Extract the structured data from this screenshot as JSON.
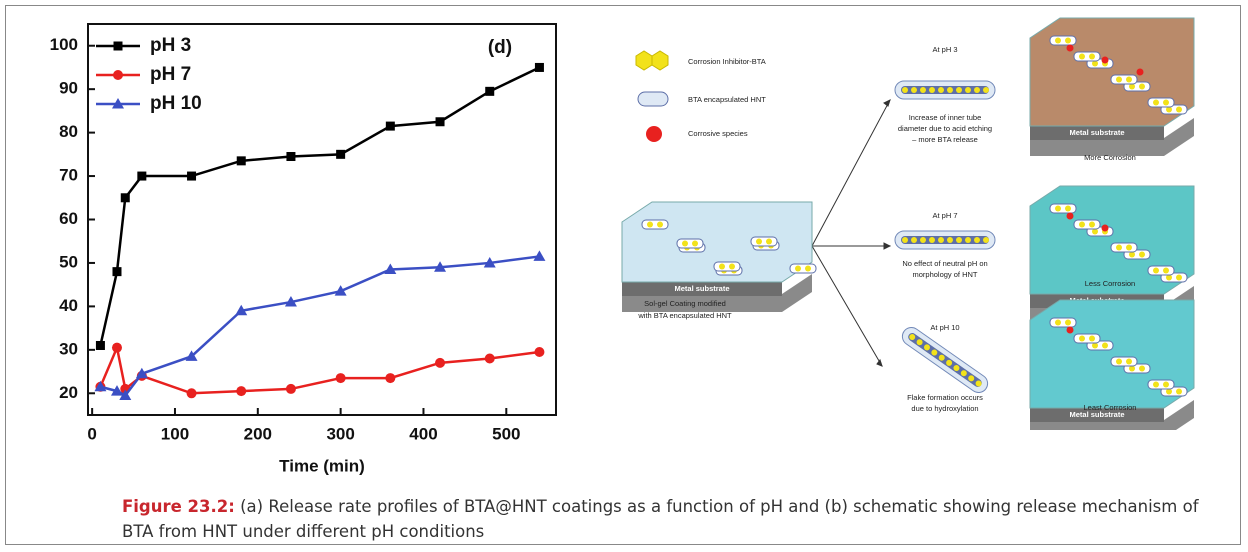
{
  "chart_data": {
    "type": "line",
    "annotation": "(d)",
    "xlabel": "Time (min)",
    "x": [
      10,
      30,
      40,
      60,
      120,
      180,
      240,
      300,
      360,
      420,
      480,
      540
    ],
    "series": [
      {
        "name": "pH 3",
        "color": "#000000",
        "marker": "square",
        "values": [
          31,
          48,
          65,
          70,
          70,
          73.5,
          74.5,
          75,
          81.5,
          82.5,
          89.5,
          95
        ]
      },
      {
        "name": "pH 7",
        "color": "#e8211f",
        "marker": "circle",
        "values": [
          21.5,
          30.5,
          21,
          24,
          20,
          20.5,
          21,
          23.5,
          23.5,
          27,
          28,
          29.5
        ]
      },
      {
        "name": "pH 10",
        "color": "#3b4fc4",
        "marker": "triangle",
        "values": [
          21.5,
          20.5,
          19.5,
          24.5,
          28.5,
          39,
          41,
          43.5,
          48.5,
          49,
          50,
          51.5
        ]
      }
    ],
    "xlim": [
      -5,
      560
    ],
    "xticks": [
      0,
      100,
      200,
      300,
      400,
      500
    ],
    "ylim": [
      15,
      105
    ],
    "yticks": [
      20,
      30,
      40,
      50,
      60,
      70,
      80,
      90,
      100
    ],
    "legend": "upper-left"
  },
  "diagram": {
    "legend": [
      "Corrosion Inhibitor-BTA",
      "BTA encapsulated HNT",
      "Corrosive species"
    ],
    "coating_label": [
      "Sol-gel Coating modified",
      "with BTA encapsulated HNT"
    ],
    "metal_substrate_labels": [
      "Metal substrate",
      "Metal substrate",
      "Metal substrate",
      "Metal substrate"
    ],
    "branches": [
      {
        "title": "At pH 3",
        "description": [
          "Increase of inner tube",
          "diameter due to acid etching",
          "– more BTA release"
        ],
        "result": "More Corrosion"
      },
      {
        "title": "At pH 7",
        "description": [
          "No effect of neutral pH on",
          "morphology of HNT"
        ],
        "result": "Less Corrosion"
      },
      {
        "title": "At pH 10",
        "description": [
          "Flake formation occurs",
          "due to hydroxylation"
        ],
        "result": "Least Corrosion"
      }
    ]
  },
  "caption": {
    "label": "Figure 23.2:",
    "text": "(a) Release rate profiles of BTA@HNT coatings as a function of pH and (b) schematic showing release mechanism of BTA from HNT under different pH conditions"
  }
}
